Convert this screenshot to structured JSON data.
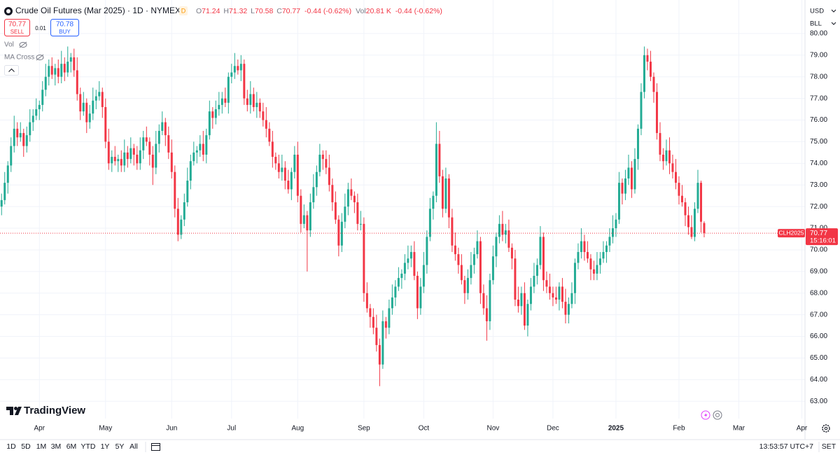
{
  "chart_data": {
    "type": "candlestick",
    "title": "Crude Oil Futures (Mar 2025) · 1D · NYMEX",
    "session_badge": "D",
    "legend": {
      "open_label": "O",
      "high_label": "H",
      "low_label": "L",
      "close_label": "C",
      "change": "-0.44 (-0.62%)",
      "volume_label": "Vol",
      "volume": "20.81 K",
      "volume_change": "-0.44 (-0.62%)"
    },
    "trade": {
      "sell_price": "70.77",
      "sell": "SELL",
      "spread": "0.01",
      "buy_price": "70.78",
      "buy": "BUY"
    },
    "indicators": [
      "Vol",
      "MA Cross"
    ],
    "currency": "USD",
    "unit": "BLL",
    "symbol_tag": "CLH2025",
    "countdown": "15:16:01",
    "up_color": "#22ab94",
    "down_color": "#f23645",
    "grid": true,
    "open": [
      72.0,
      72.3,
      73.1,
      73.9,
      74.8,
      75.6,
      75.2,
      75.4,
      74.8,
      75.3,
      75.9,
      76.2,
      76.5,
      76.7,
      77.4,
      78.0,
      78.5,
      78.1,
      78.4,
      78.0,
      78.6,
      78.2,
      78.7,
      78.9,
      78.3,
      77.2,
      76.4,
      76.8,
      75.9,
      76.3,
      76.9,
      77.1,
      77.3,
      76.6,
      75.0,
      74.0,
      74.3,
      74.1,
      74.2,
      73.9,
      74.5,
      74.2,
      74.7,
      74.4,
      74.0,
      74.6,
      75.2,
      75.0,
      74.4,
      73.8,
      74.9,
      75.5,
      75.9,
      75.3,
      74.5,
      73.6,
      71.9,
      70.7,
      71.4,
      72.2,
      73.2,
      74.1,
      74.5,
      74.6,
      74.9,
      74.4,
      75.3,
      76.4,
      76.1,
      76.5,
      76.7,
      77.0,
      76.8,
      78.0,
      78.2,
      78.5,
      78.3,
      78.6,
      77.0,
      76.7,
      77.2,
      76.6,
      76.8,
      76.4,
      76.0,
      75.6,
      75.0,
      74.3,
      74.0,
      73.6,
      73.8,
      73.2,
      72.8,
      73.6,
      74.4,
      72.5,
      71.2,
      71.6,
      70.9,
      72.2,
      72.9,
      73.6,
      74.4,
      74.2,
      73.8,
      73.0,
      72.2,
      71.4,
      70.2,
      71.3,
      72.0,
      72.8,
      72.5,
      72.2,
      71.2,
      71.2,
      68.0,
      67.3,
      66.9,
      66.4,
      65.6,
      64.7,
      66.7,
      66.4,
      67.3,
      67.8,
      68.3,
      68.7,
      68.9,
      69.4,
      69.6,
      69.9,
      68.8,
      67.3,
      68.3,
      69.3,
      70.6,
      71.9,
      72.5,
      74.9,
      73.4,
      71.9,
      73.3,
      71.5,
      70.2,
      69.8,
      69.3,
      68.6,
      68.0,
      68.7,
      69.3,
      69.8,
      70.4,
      68.0,
      67.3,
      66.7,
      68.6,
      69.7,
      70.6,
      71.2,
      70.7,
      70.9,
      70.1,
      69.6,
      67.7,
      67.4,
      68.0,
      66.5,
      67.5,
      68.3,
      68.8,
      69.3,
      70.6,
      68.6,
      68.3,
      68.0,
      67.8,
      67.7,
      68.3,
      67.6,
      67.0,
      67.5,
      68.0,
      69.4,
      69.9,
      70.4,
      69.9,
      69.6,
      69.1,
      68.9,
      69.3,
      69.6,
      69.9,
      70.2,
      70.6,
      71.0,
      71.4,
      73.1,
      72.6,
      73.3,
      73.8,
      72.8,
      74.2,
      75.6,
      77.3,
      79.0,
      78.7,
      78.0,
      77.3,
      75.4,
      74.4,
      74.1,
      74.6,
      74.0,
      73.6,
      73.1,
      72.5,
      72.2,
      71.6,
      71.05,
      70.6,
      71.9,
      73.1,
      71.24
    ],
    "high": [
      72.6,
      73.6,
      74.1,
      75.2,
      76.2,
      75.9,
      75.9,
      75.6,
      75.7,
      76.5,
      76.5,
      77.0,
      76.9,
      77.8,
      78.6,
      78.8,
      78.9,
      78.6,
      78.8,
      79.2,
      78.9,
      79.4,
      79.1,
      79.3,
      78.9,
      77.5,
      77.3,
      77.0,
      76.7,
      77.5,
      77.4,
      77.8,
      77.5,
      77.0,
      75.6,
      74.6,
      74.8,
      74.4,
      74.6,
      75.1,
      74.8,
      75.2,
      74.9,
      74.8,
      75.2,
      75.5,
      75.7,
      75.2,
      74.8,
      75.5,
      75.8,
      76.4,
      76.1,
      75.7,
      75.1,
      73.9,
      72.4,
      71.6,
      72.6,
      73.8,
      74.4,
      75.0,
      74.8,
      75.3,
      75.5,
      75.6,
      76.9,
      76.6,
      76.9,
      77.3,
      77.3,
      77.5,
      78.2,
      78.6,
      79.1,
      78.8,
      79.0,
      78.8,
      77.4,
      77.8,
      77.5,
      77.3,
      77.0,
      76.8,
      76.6,
      75.9,
      75.5,
      74.5,
      74.4,
      74.4,
      74.1,
      73.7,
      73.8,
      74.8,
      75.0,
      72.8,
      72.1,
      71.8,
      72.6,
      73.5,
      73.9,
      74.9,
      74.6,
      74.6,
      74.4,
      73.3,
      72.7,
      71.6,
      71.7,
      72.6,
      73.1,
      73.3,
      72.7,
      72.6,
      71.8,
      71.5,
      68.5,
      67.5,
      67.3,
      67.0,
      65.9,
      67.2,
      66.9,
      67.7,
      68.4,
      68.6,
      69.2,
      69.1,
      69.8,
      70.2,
      70.2,
      70.4,
      69.0,
      68.7,
      69.9,
      70.9,
      72.4,
      72.7,
      75.9,
      75.5,
      73.7,
      73.8,
      73.5,
      71.9,
      70.8,
      70.1,
      69.8,
      68.8,
      69.1,
      69.9,
      70.1,
      70.9,
      70.6,
      68.4,
      67.9,
      68.9,
      70.2,
      70.8,
      71.6,
      71.8,
      71.2,
      71.4,
      70.3,
      70.0,
      68.3,
      68.3,
      68.5,
      67.7,
      68.7,
      69.4,
      69.6,
      71.1,
      70.8,
      69.0,
      68.9,
      68.3,
      68.3,
      68.5,
      68.7,
      68.2,
      67.8,
      68.5,
      69.6,
      70.3,
      71.0,
      70.7,
      70.4,
      69.8,
      69.5,
      69.9,
      69.9,
      70.4,
      70.4,
      71.0,
      71.6,
      71.7,
      73.6,
      73.3,
      73.7,
      74.4,
      74.1,
      74.7,
      75.8,
      77.7,
      79.4,
      79.3,
      79.2,
      78.2,
      77.7,
      75.9,
      74.7,
      75.1,
      75.2,
      74.4,
      74.2,
      73.4,
      73.0,
      72.4,
      72.0,
      71.6,
      72.2,
      73.7,
      73.2,
      71.32
    ],
    "low": [
      71.6,
      72.1,
      72.6,
      73.6,
      74.5,
      74.8,
      75.0,
      74.3,
      74.5,
      75.0,
      75.5,
      76.0,
      76.0,
      76.4,
      77.1,
      77.6,
      77.9,
      77.6,
      77.7,
      77.7,
      77.8,
      78.0,
      78.2,
      78.0,
      76.9,
      76.0,
      76.2,
      75.4,
      75.6,
      76.0,
      76.5,
      76.9,
      76.1,
      74.7,
      73.7,
      73.6,
      73.9,
      73.6,
      73.6,
      73.6,
      73.8,
      74.0,
      73.9,
      73.7,
      73.7,
      74.2,
      74.8,
      73.9,
      73.0,
      73.5,
      74.5,
      75.3,
      74.8,
      74.2,
      73.3,
      71.5,
      70.4,
      70.5,
      71.1,
      72.0,
      72.8,
      73.9,
      74.0,
      74.3,
      74.1,
      74.0,
      75.1,
      75.6,
      75.8,
      76.2,
      76.3,
      76.6,
      76.3,
      77.7,
      77.9,
      78.1,
      77.8,
      76.7,
      76.4,
      76.3,
      76.4,
      76.1,
      76.1,
      75.7,
      75.2,
      74.8,
      73.8,
      73.7,
      73.3,
      73.2,
      72.8,
      72.6,
      72.3,
      73.3,
      72.2,
      70.8,
      71.0,
      69.0,
      70.6,
      71.9,
      72.5,
      73.4,
      73.7,
      73.5,
      72.7,
      71.8,
      71.2,
      69.7,
      69.9,
      71.0,
      71.6,
      72.3,
      71.7,
      70.9,
      70.9,
      67.6,
      67.1,
      66.4,
      66.1,
      65.3,
      63.7,
      64.5,
      65.9,
      66.1,
      67.0,
      67.4,
      68.1,
      68.2,
      68.6,
      69.1,
      69.2,
      68.6,
      66.8,
      67.0,
      68.0,
      68.9,
      70.4,
      71.4,
      72.2,
      73.1,
      71.5,
      71.7,
      71.0,
      69.9,
      69.5,
      68.9,
      68.4,
      67.5,
      67.7,
      68.4,
      68.9,
      69.6,
      67.5,
      67.0,
      65.8,
      66.3,
      68.4,
      69.2,
      70.3,
      70.4,
      70.3,
      69.9,
      69.1,
      67.4,
      67.1,
      67.0,
      66.3,
      66.0,
      67.2,
      68.0,
      68.4,
      69.1,
      68.1,
      68.0,
      67.7,
      67.4,
      67.5,
      67.2,
      67.3,
      66.6,
      66.6,
      67.3,
      67.5,
      69.1,
      69.6,
      69.5,
      69.4,
      68.6,
      68.6,
      68.6,
      68.9,
      69.4,
      69.4,
      69.9,
      70.3,
      70.6,
      71.2,
      72.1,
      72.3,
      73.0,
      72.4,
      72.6,
      73.7,
      75.3,
      77.0,
      78.3,
      77.8,
      76.8,
      75.1,
      74.1,
      73.7,
      73.9,
      73.5,
      73.3,
      72.8,
      72.1,
      72.0,
      71.1,
      70.7,
      70.5,
      70.4,
      71.7,
      70.8,
      70.58
    ],
    "close": [
      72.3,
      73.1,
      73.9,
      74.8,
      75.6,
      75.2,
      75.4,
      74.8,
      75.3,
      75.9,
      76.2,
      76.5,
      76.7,
      77.4,
      78.0,
      78.5,
      78.1,
      78.4,
      78.0,
      78.6,
      78.2,
      78.7,
      78.9,
      78.3,
      77.2,
      76.4,
      76.8,
      75.9,
      76.3,
      76.9,
      77.1,
      77.3,
      76.6,
      75.0,
      74.0,
      74.3,
      74.1,
      74.2,
      73.9,
      74.5,
      74.2,
      74.7,
      74.4,
      74.0,
      74.6,
      75.2,
      75.0,
      74.4,
      73.8,
      74.9,
      75.5,
      75.9,
      75.3,
      74.5,
      73.6,
      71.9,
      70.7,
      71.4,
      72.2,
      73.2,
      74.1,
      74.5,
      74.6,
      74.9,
      74.4,
      75.3,
      76.4,
      76.1,
      76.5,
      76.7,
      77.0,
      76.8,
      78.0,
      78.2,
      78.5,
      78.3,
      78.6,
      77.0,
      76.7,
      77.2,
      76.6,
      76.8,
      76.4,
      76.0,
      75.6,
      75.0,
      74.3,
      74.0,
      73.6,
      73.8,
      73.2,
      72.8,
      73.6,
      74.4,
      72.5,
      71.2,
      71.6,
      70.9,
      72.2,
      72.9,
      73.6,
      74.4,
      74.2,
      73.8,
      73.0,
      72.2,
      71.4,
      70.2,
      71.3,
      72.0,
      72.8,
      72.5,
      72.2,
      71.2,
      71.2,
      68.0,
      67.3,
      66.9,
      66.4,
      65.6,
      64.7,
      66.7,
      66.4,
      67.3,
      67.8,
      68.3,
      68.7,
      68.9,
      69.4,
      69.6,
      69.9,
      68.8,
      67.3,
      68.3,
      69.3,
      70.6,
      71.9,
      72.5,
      74.9,
      73.4,
      71.9,
      73.3,
      71.5,
      70.2,
      69.8,
      69.3,
      68.6,
      68.0,
      68.7,
      69.3,
      69.8,
      70.4,
      68.0,
      67.3,
      66.7,
      68.6,
      69.7,
      70.6,
      71.2,
      70.7,
      70.9,
      70.1,
      69.6,
      67.7,
      67.4,
      68.0,
      66.5,
      67.5,
      68.3,
      68.8,
      69.3,
      70.6,
      68.6,
      68.3,
      68.0,
      67.8,
      67.7,
      68.3,
      67.6,
      67.0,
      67.5,
      68.0,
      69.4,
      69.9,
      70.4,
      69.9,
      69.6,
      69.1,
      68.9,
      69.3,
      69.6,
      69.9,
      70.2,
      70.6,
      71.0,
      71.4,
      73.1,
      72.6,
      73.3,
      73.8,
      72.8,
      74.2,
      75.6,
      77.3,
      79.0,
      78.7,
      78.0,
      77.3,
      75.4,
      74.4,
      74.1,
      74.6,
      74.0,
      73.6,
      73.1,
      72.5,
      72.2,
      71.6,
      71.05,
      70.6,
      71.9,
      73.1,
      71.3,
      70.77
    ],
    "xlim": [
      -0.5,
      255
    ],
    "xticks": [
      {
        "value": 12,
        "label": "Apr"
      },
      {
        "value": 33,
        "label": "May"
      },
      {
        "value": 54,
        "label": "Jun"
      },
      {
        "value": 73,
        "label": "Jul"
      },
      {
        "value": 94,
        "label": "Aug"
      },
      {
        "value": 115,
        "label": "Sep"
      },
      {
        "value": 134,
        "label": "Oct"
      },
      {
        "value": 156,
        "label": "Nov"
      },
      {
        "value": 175,
        "label": "Dec"
      },
      {
        "value": 195,
        "label": "2025"
      },
      {
        "value": 215,
        "label": "Feb"
      },
      {
        "value": 234,
        "label": "Mar"
      },
      {
        "value": 254,
        "label": "Apr"
      }
    ],
    "ylim": [
      62.2,
      81.55
    ],
    "yticks": [
      {
        "value": 63,
        "label": "63.00"
      },
      {
        "value": 64,
        "label": "64.00"
      },
      {
        "value": 65,
        "label": "65.00"
      },
      {
        "value": 66,
        "label": "66.00"
      },
      {
        "value": 67,
        "label": "67.00"
      },
      {
        "value": 68,
        "label": "68.00"
      },
      {
        "value": 69,
        "label": "69.00"
      },
      {
        "value": 70,
        "label": "70.00"
      },
      {
        "value": 71,
        "label": "71.00"
      },
      {
        "value": 72,
        "label": "72.00"
      },
      {
        "value": 73,
        "label": "73.00"
      },
      {
        "value": 74,
        "label": "74.00"
      },
      {
        "value": 75,
        "label": "75.00"
      },
      {
        "value": 76,
        "label": "76.00"
      },
      {
        "value": 77,
        "label": "77.00"
      },
      {
        "value": 78,
        "label": "78.00"
      },
      {
        "value": 79,
        "label": "79.00"
      },
      {
        "value": 80,
        "label": "80.00"
      }
    ]
  },
  "brand": "TradingView",
  "toolbar": {
    "ranges": [
      "1D",
      "5D",
      "1M",
      "3M",
      "6M",
      "YTD",
      "1Y",
      "5Y",
      "All"
    ],
    "clock": "13:53:57 UTC+7",
    "session": "SET"
  }
}
